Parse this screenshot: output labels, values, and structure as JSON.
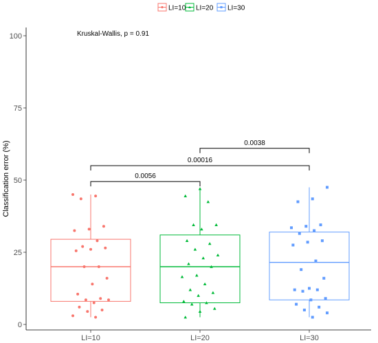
{
  "chart_data": {
    "type": "box",
    "xlabel": "",
    "ylabel": "Classification error (%)",
    "ylim": [
      0,
      100
    ],
    "yticks": [
      0,
      25,
      50,
      75,
      100
    ],
    "categories": [
      "LI=10",
      "LI=20",
      "LI=30"
    ],
    "legend": {
      "position": "top",
      "entries": [
        "LI=10",
        "LI=20",
        "LI=30"
      ]
    },
    "colors": {
      "LI=10": "#F8766D",
      "LI=20": "#00BA38",
      "LI=30": "#619CFF"
    },
    "markers": {
      "LI=10": "circle",
      "LI=20": "triangle",
      "LI=30": "square"
    },
    "annotation": "Kruskal-Wallis, p = 0.91",
    "grid": false,
    "boxes": [
      {
        "name": "LI=10",
        "min": 2.5,
        "q1": 8,
        "median": 20,
        "q3": 29.5,
        "max": 45
      },
      {
        "name": "LI=20",
        "min": 2.5,
        "q1": 7.5,
        "median": 20,
        "q3": 31,
        "max": 47
      },
      {
        "name": "LI=30",
        "min": 2.5,
        "q1": 8.5,
        "median": 21.5,
        "q3": 32,
        "max": 47.5
      }
    ],
    "points": {
      "LI=10": [
        45,
        44.5,
        43.5,
        34,
        33,
        32.5,
        29,
        27,
        26.5,
        26,
        25.5,
        20,
        20,
        16,
        14,
        10.5,
        9,
        8.5,
        8.5,
        7.5,
        6,
        5,
        4.5,
        3,
        2.5
      ],
      "LI=20": [
        47,
        44.5,
        42.5,
        34.5,
        34.5,
        33,
        29,
        28,
        26,
        24,
        23,
        21,
        20,
        17,
        16.5,
        14,
        12,
        11,
        10,
        8,
        7.5,
        7,
        5.5,
        4.5,
        2.5
      ],
      "LI=30": [
        47.5,
        43.5,
        42.5,
        34.5,
        34,
        33.5,
        32.5,
        31.5,
        29,
        28.5,
        27.5,
        22,
        19,
        16,
        12.5,
        12,
        12,
        11.5,
        9,
        8.5,
        7,
        6,
        5,
        4,
        2.5
      ]
    },
    "comparisons": [
      {
        "group1": "LI=10",
        "group2": "LI=20",
        "label": "0.0056",
        "y": 49.5
      },
      {
        "group1": "LI=10",
        "group2": "LI=30",
        "label": "0.00016",
        "y": 55
      },
      {
        "group1": "LI=20",
        "group2": "LI=30",
        "label": "0.0038",
        "y": 61
      }
    ]
  }
}
